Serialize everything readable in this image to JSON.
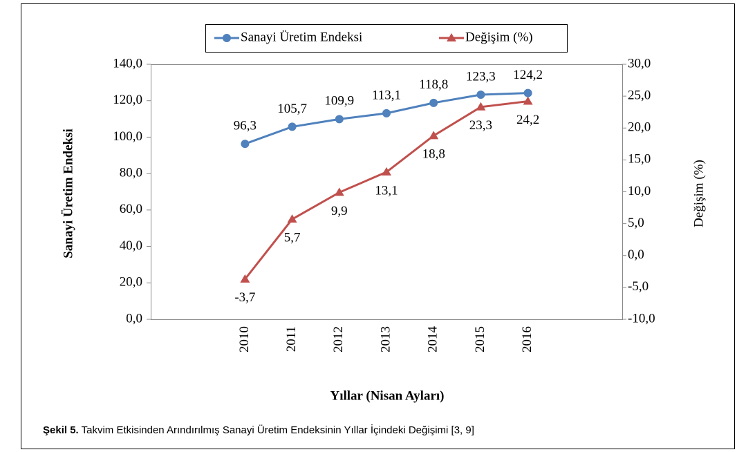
{
  "chart_data": {
    "type": "line",
    "categories": [
      "2010",
      "2011",
      "2012",
      "2013",
      "2014",
      "2015",
      "2016"
    ],
    "series": [
      {
        "name": "Sanayi Üretim Endeksi",
        "color": "#4f81bd",
        "marker": "circle",
        "values": [
          96.3,
          105.7,
          109.9,
          113.1,
          118.8,
          123.3,
          124.2
        ],
        "value_labels": [
          "96,3",
          "105,7",
          "109,9",
          "113,1",
          "118,8",
          "123,3",
          "124,2"
        ]
      },
      {
        "name": "Değişim (%)",
        "color": "#c0504d",
        "marker": "triangle",
        "axis": "y2",
        "values": [
          -3.7,
          5.7,
          9.9,
          13.1,
          18.8,
          23.3,
          24.2
        ],
        "value_labels": [
          "-3,7",
          "5,7",
          "9,9",
          "13,1",
          "18,8",
          "23,3",
          "24,2"
        ]
      }
    ],
    "ylabel": "Sanayi Üretim Endeksi",
    "y2label": "Değişim (%)",
    "xlabel": "Yıllar (Nisan Ayları)",
    "ylim": [
      0,
      140
    ],
    "yticks": [
      {
        "value": 0,
        "label": "0,0"
      },
      {
        "value": 20,
        "label": "20,0"
      },
      {
        "value": 40,
        "label": "40,0"
      },
      {
        "value": 60,
        "label": "60,0"
      },
      {
        "value": 80,
        "label": "80,0"
      },
      {
        "value": 100,
        "label": "100,0"
      },
      {
        "value": 120,
        "label": "120,0"
      },
      {
        "value": 140,
        "label": "140,0"
      }
    ],
    "y2lim": [
      -10,
      30
    ],
    "y2ticks": [
      {
        "value": -10,
        "label": "-10,0"
      },
      {
        "value": -5,
        "label": "-5,0"
      },
      {
        "value": 0,
        "label": "0,0"
      },
      {
        "value": 5,
        "label": "5,0"
      },
      {
        "value": 10,
        "label": "10,0"
      },
      {
        "value": 15,
        "label": "15,0"
      },
      {
        "value": 20,
        "label": "20,0"
      },
      {
        "value": 25,
        "label": "25,0"
      },
      {
        "value": 30,
        "label": "30,0"
      }
    ],
    "grid": false,
    "legend": "top"
  },
  "caption": {
    "label": "Şekil 5.",
    "text": "Takvim Etkisinden Arındırılmış Sanayi Üretim Endeksinin Yıllar İçindeki Değişimi [3, 9]"
  }
}
